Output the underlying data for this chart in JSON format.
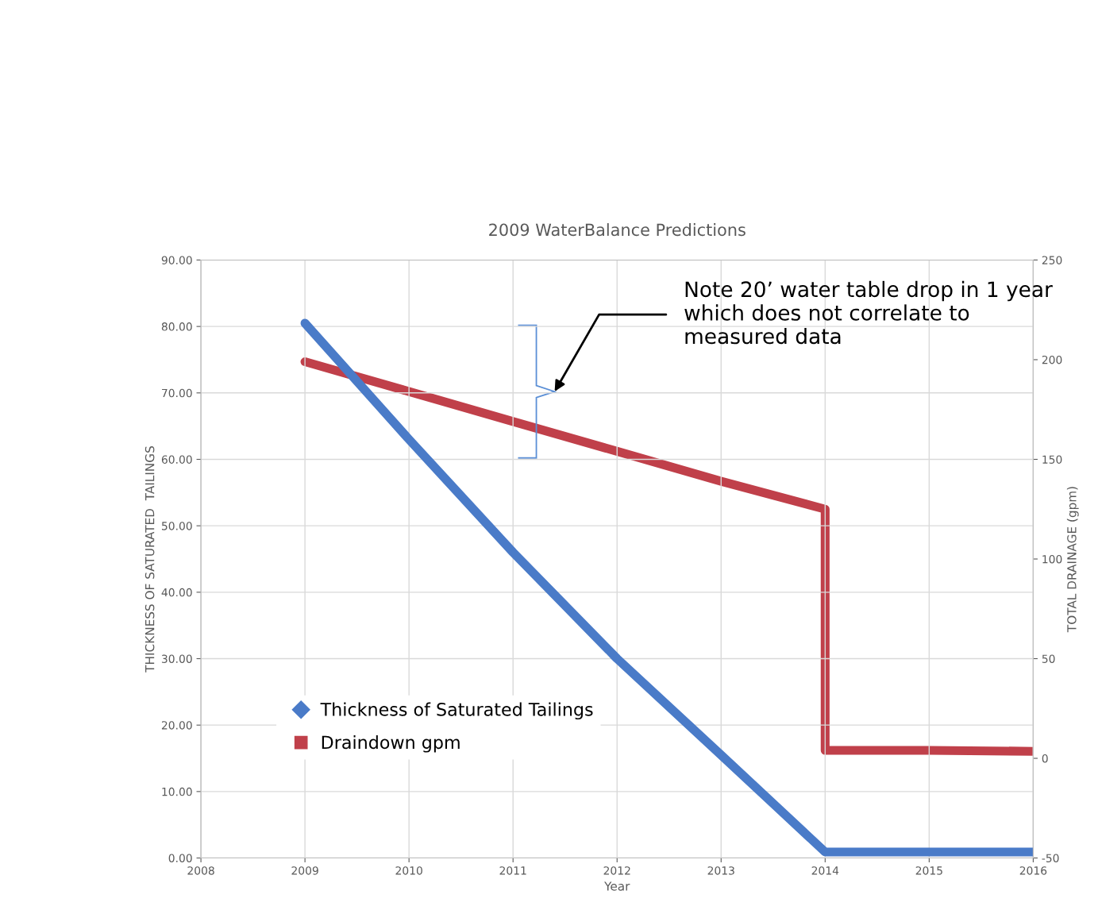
{
  "chart_data": {
    "type": "line",
    "title": "2009 WaterBalance Predictions",
    "xlabel": "Year",
    "ylabel": "THICKNESS OF SATURATED  TAILINGS",
    "y2label": "TOTAL DRAINAGE (gpm)",
    "series": [
      {
        "name": "Thickness of Saturated Tailings",
        "color": "#4a7bc8",
        "x": [
          2009,
          2010,
          2011,
          2012,
          2013,
          2014,
          2015,
          2016
        ],
        "values": [
          80.5,
          63,
          46,
          30,
          15.5,
          0.9,
          0.9,
          0.9
        ]
      },
      {
        "name": "Draindown gpm",
        "color": "#c0404a",
        "axis": "y2",
        "x": [
          2009,
          2010,
          2011,
          2012,
          2013,
          2014,
          2014,
          2015,
          2016
        ],
        "values": [
          199,
          184,
          169,
          154,
          139,
          125,
          4,
          4,
          3.5
        ]
      }
    ],
    "xlim": [
      2008,
      2016
    ],
    "xticks": [
      2008,
      2009,
      2010,
      2011,
      2012,
      2013,
      2014,
      2015,
      2016
    ],
    "ylim": [
      0,
      90
    ],
    "yticks": [
      {
        "value": 0,
        "label": "0.00"
      },
      {
        "value": 10,
        "label": "10.00"
      },
      {
        "value": 20,
        "label": "20.00"
      },
      {
        "value": 30,
        "label": "30.00"
      },
      {
        "value": 40,
        "label": "40.00"
      },
      {
        "value": 50,
        "label": "50.00"
      },
      {
        "value": 60,
        "label": "60.00"
      },
      {
        "value": 70,
        "label": "70.00"
      },
      {
        "value": 80,
        "label": "80.00"
      },
      {
        "value": 90,
        "label": "90.00"
      }
    ],
    "y2lim": [
      -50,
      250
    ],
    "y2ticks": [
      -50,
      0,
      50,
      100,
      150,
      200,
      250
    ],
    "grid": true,
    "legend": "bottom left",
    "annotations": [
      "Note 20’ water table drop in 1 year\nwhich does not correlate to\nmeasured data"
    ]
  }
}
